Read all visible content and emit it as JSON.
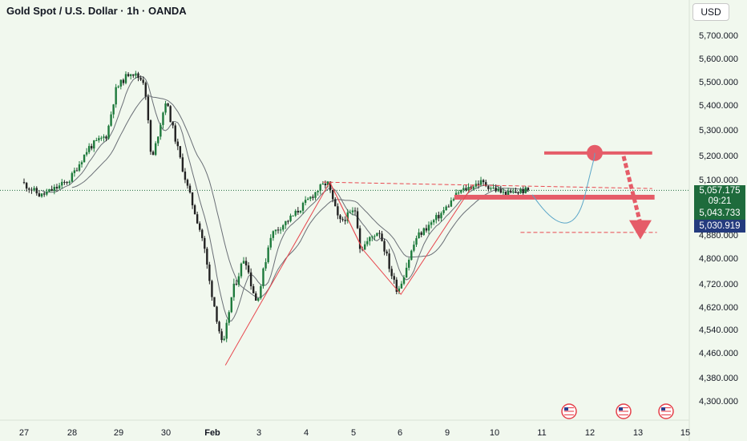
{
  "header": {
    "title": "Gold Spot / U.S. Dollar · 1h · OANDA",
    "currency_label": "USD"
  },
  "price_tags": {
    "current_price": "5,057.175",
    "countdown": "09:21",
    "level_a": "5,043.733",
    "level_b": "5,030.919"
  },
  "colors": {
    "background": "#f1f8ee",
    "candle_up": "#1e7a3c",
    "candle_down": "#222222",
    "pattern_line": "#e8484f",
    "zone": "#e55c68",
    "moving_average": "#6a6f76"
  },
  "icons": [
    "us-flag-event-icon",
    "us-flag-event-icon",
    "us-flag-event-icon"
  ],
  "chart_data": {
    "type": "candlestick",
    "title": "Gold Spot / U.S. Dollar · 1h · OANDA",
    "x_tick_labels": [
      "27",
      "28",
      "29",
      "30",
      "Feb",
      "3",
      "4",
      "5",
      "6",
      "9",
      "10",
      "11",
      "12",
      "13",
      "15"
    ],
    "y_tick_labels": [
      "5,700.000",
      "5,600.000",
      "5,500.000",
      "5,400.000",
      "5,300.000",
      "5,200.000",
      "5,100.000",
      "4,880.000",
      "4,800.000",
      "4,720.000",
      "4,620.000",
      "4,540.000",
      "4,460.000",
      "4,380.000",
      "4,300.000"
    ],
    "y_tick_values": [
      5700,
      5600,
      5500,
      5400,
      5300,
      5200,
      5100,
      4880,
      4800,
      4720,
      4620,
      4540,
      4460,
      4380,
      4300
    ],
    "current_price": 5057.175,
    "price_series_approx": [
      {
        "x": 0.0,
        "price": 5090
      },
      {
        "x": 0.4,
        "price": 5035
      },
      {
        "x": 0.8,
        "price": 5075
      },
      {
        "x": 1.0,
        "price": 5100
      },
      {
        "x": 1.4,
        "price": 5230
      },
      {
        "x": 1.8,
        "price": 5280
      },
      {
        "x": 2.0,
        "price": 5470
      },
      {
        "x": 2.3,
        "price": 5545
      },
      {
        "x": 2.6,
        "price": 5500
      },
      {
        "x": 2.75,
        "price": 5170
      },
      {
        "x": 3.05,
        "price": 5420
      },
      {
        "x": 3.5,
        "price": 5080
      },
      {
        "x": 3.85,
        "price": 4860
      },
      {
        "x": 4.1,
        "price": 4620
      },
      {
        "x": 4.28,
        "price": 4470
      },
      {
        "x": 4.5,
        "price": 4700
      },
      {
        "x": 4.75,
        "price": 4810
      },
      {
        "x": 5.0,
        "price": 4640
      },
      {
        "x": 5.3,
        "price": 4880
      },
      {
        "x": 5.8,
        "price": 4960
      },
      {
        "x": 6.3,
        "price": 5060
      },
      {
        "x": 6.5,
        "price": 5090
      },
      {
        "x": 6.75,
        "price": 4930
      },
      {
        "x": 7.1,
        "price": 4980
      },
      {
        "x": 7.2,
        "price": 4830
      },
      {
        "x": 7.6,
        "price": 4900
      },
      {
        "x": 7.85,
        "price": 4760
      },
      {
        "x": 8.0,
        "price": 4690
      },
      {
        "x": 8.4,
        "price": 4870
      },
      {
        "x": 8.95,
        "price": 4970
      },
      {
        "x": 9.3,
        "price": 5050
      },
      {
        "x": 9.75,
        "price": 5090
      },
      {
        "x": 10.3,
        "price": 5040
      },
      {
        "x": 10.6,
        "price": 5055
      },
      {
        "x": 10.75,
        "price": 5057
      }
    ],
    "annotations": {
      "resistance_zone_price": 5210,
      "support_zone_price": 5030,
      "dashed_level_upper_price": 5090,
      "dashed_level_lower_price": 4890,
      "target_arrow_end_price": 4870
    },
    "grid": false
  }
}
